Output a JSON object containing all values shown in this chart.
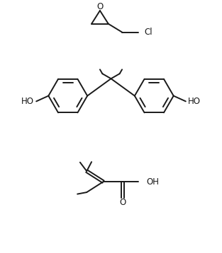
{
  "bg_color": "#ffffff",
  "line_color": "#1a1a1a",
  "lw": 1.4,
  "font_size": 8.5,
  "figsize": [
    3.13,
    3.58
  ],
  "dpi": 100,
  "xlim": [
    0,
    10
  ],
  "ylim": [
    0,
    11.4
  ]
}
